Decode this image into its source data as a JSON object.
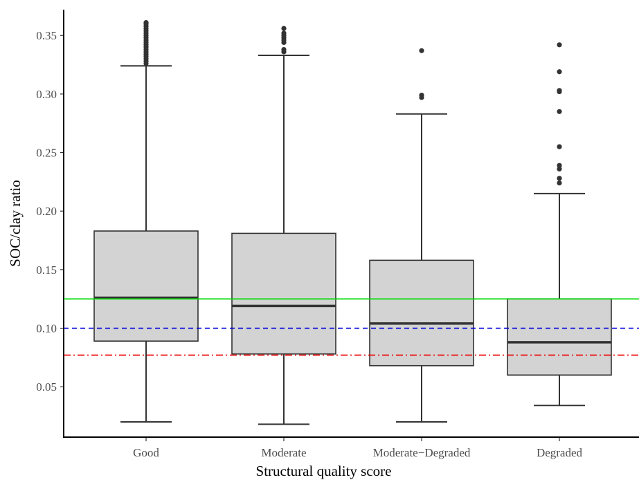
{
  "chart_data": {
    "type": "boxplot",
    "xlabel": "Structural quality score",
    "ylabel": "SOC/clay ratio",
    "ylim": [
      0.007,
      0.372
    ],
    "yticks": [
      0.05,
      0.1,
      0.15,
      0.2,
      0.25,
      0.3,
      0.35
    ],
    "ytick_labels": [
      "0.05",
      "0.10",
      "0.15",
      "0.20",
      "0.25",
      "0.30",
      "0.35"
    ],
    "grid": false,
    "categories": [
      "Good",
      "Moderate",
      "Moderate−Degraded",
      "Degraded"
    ],
    "boxes": [
      {
        "category": "Good",
        "whisker_low": 0.02,
        "q1": 0.089,
        "median": 0.126,
        "q3": 0.183,
        "whisker_high": 0.324,
        "outliers": [
          0.326,
          0.328,
          0.33,
          0.332,
          0.334,
          0.336,
          0.338,
          0.34,
          0.342,
          0.344,
          0.346,
          0.348,
          0.35,
          0.352,
          0.354,
          0.356,
          0.358,
          0.36,
          0.361
        ]
      },
      {
        "category": "Moderate",
        "whisker_low": 0.018,
        "q1": 0.078,
        "median": 0.119,
        "q3": 0.181,
        "whisker_high": 0.333,
        "outliers": [
          0.336,
          0.338,
          0.344,
          0.346,
          0.348,
          0.35,
          0.352,
          0.356
        ]
      },
      {
        "category": "Moderate−Degraded",
        "whisker_low": 0.02,
        "q1": 0.068,
        "median": 0.104,
        "q3": 0.158,
        "whisker_high": 0.283,
        "outliers": [
          0.297,
          0.299,
          0.337
        ]
      },
      {
        "category": "Degraded",
        "whisker_low": 0.034,
        "q1": 0.06,
        "median": 0.088,
        "q3": 0.125,
        "whisker_high": 0.215,
        "outliers": [
          0.224,
          0.228,
          0.236,
          0.239,
          0.255,
          0.285,
          0.302,
          0.303,
          0.319,
          0.342
        ]
      }
    ],
    "reference_lines": [
      {
        "value": 0.125,
        "color": "#00dd00",
        "style": "solid"
      },
      {
        "value": 0.1,
        "color": "#0000dd",
        "style": "dashed"
      },
      {
        "value": 0.077,
        "color": "#ee0000",
        "style": "dotdash"
      }
    ],
    "colors": {
      "box_fill": "#d3d3d3",
      "box_stroke": "#333333",
      "outlier": "#333333"
    }
  }
}
